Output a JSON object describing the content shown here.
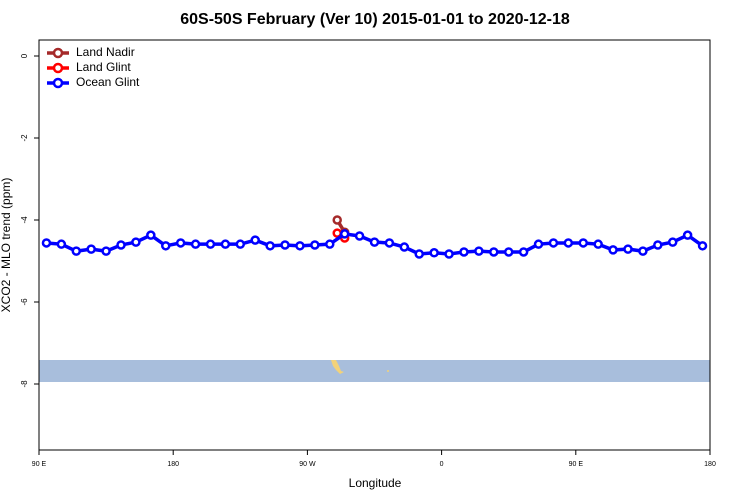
{
  "chart_data": {
    "type": "line",
    "title": "60S-50S February (Ver 10)   2015-01-01 to 2020-12-18",
    "xlabel": "Longitude",
    "ylabel": "XCO2 - MLO trend (ppm)",
    "xlim": [
      90,
      540
    ],
    "xticks": [
      {
        "value": 90,
        "label": "90 E"
      },
      {
        "value": 180,
        "label": "180"
      },
      {
        "value": 270,
        "label": "90 W"
      },
      {
        "value": 360,
        "label": "0"
      },
      {
        "value": 450,
        "label": "90 E"
      },
      {
        "value": 540,
        "label": "180"
      }
    ],
    "ylim": [
      -9.61,
      0.39
    ],
    "yticks": [
      0,
      -2,
      -4,
      -6,
      -8
    ],
    "legend": "top-left",
    "series": [
      {
        "name": "Land Nadir",
        "color": "#a52a2a",
        "x": [
          290,
          295
        ],
        "values": [
          -4.0,
          -4.3
        ]
      },
      {
        "name": "Land Glint",
        "color": "#ff0000",
        "x": [
          290,
          295
        ],
        "values": [
          -4.32,
          -4.44
        ]
      },
      {
        "name": "Ocean Glint",
        "color": "#0000ff",
        "x": [
          95,
          105,
          115,
          125,
          135,
          145,
          155,
          165,
          175,
          185,
          195,
          205,
          215,
          225,
          235,
          245,
          255,
          265,
          275,
          285,
          295,
          305,
          315,
          325,
          335,
          345,
          355,
          365,
          375,
          385,
          395,
          405,
          415,
          425,
          435,
          445,
          455,
          465,
          475,
          485,
          495,
          505,
          515,
          525,
          535
        ],
        "values": [
          -4.56,
          -4.59,
          -4.76,
          -4.71,
          -4.76,
          -4.61,
          -4.54,
          -4.37,
          -4.63,
          -4.56,
          -4.59,
          -4.59,
          -4.59,
          -4.59,
          -4.49,
          -4.63,
          -4.61,
          -4.63,
          -4.61,
          -4.59,
          -4.34,
          -4.39,
          -4.54,
          -4.56,
          -4.66,
          -4.83,
          -4.8,
          -4.83,
          -4.78,
          -4.76,
          -4.78,
          -4.78,
          -4.78,
          -4.59,
          -4.56,
          -4.56,
          -4.56,
          -4.59,
          -4.73,
          -4.71,
          -4.76,
          -4.61,
          -4.54,
          -4.37,
          -4.63
        ]
      }
    ]
  }
}
